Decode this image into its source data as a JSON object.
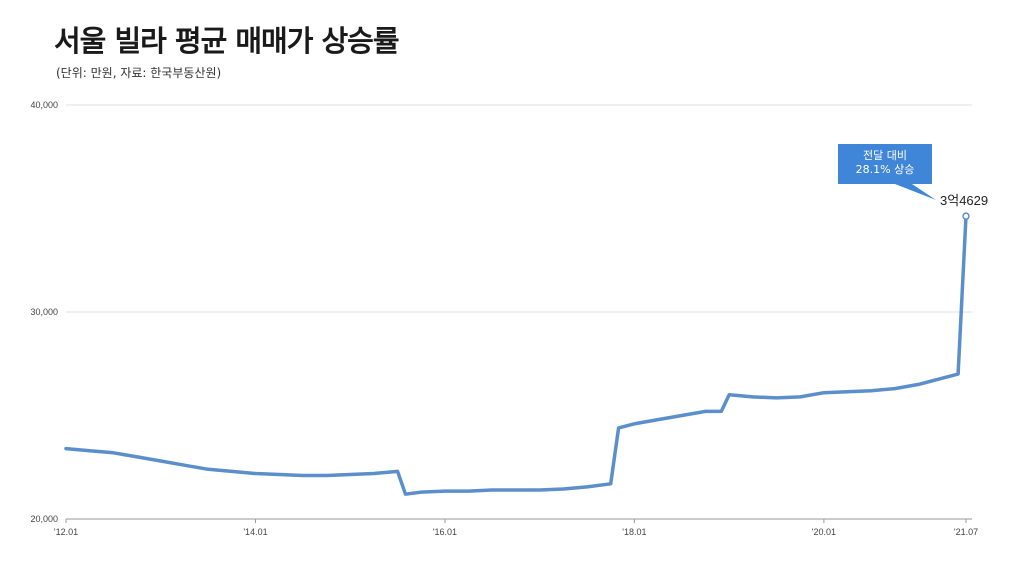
{
  "chart_data": {
    "type": "line",
    "title": "서울 빌라 평균 매매가 상승률",
    "subtitle": "(단위: 만원, 자료: 한국부동산원)",
    "ylim": [
      20000,
      40000
    ],
    "y_ticks": [
      20000,
      30000,
      40000
    ],
    "y_tick_labels": [
      "20,000",
      "30,000",
      "40,000"
    ],
    "x_ticks": [
      "2012-01",
      "2014-01",
      "2016-01",
      "2018-01",
      "2020-01",
      "2021-07"
    ],
    "x_tick_labels": [
      "'12.01",
      "'14.01",
      "'16.01",
      "'18.01",
      "'20.01",
      "'21.07"
    ],
    "grid": "horizontal",
    "color": "#5b8fcc",
    "series": [
      {
        "x": [
          "2012-01",
          "2012-04",
          "2012-07",
          "2012-10",
          "2013-01",
          "2013-04",
          "2013-07",
          "2013-10",
          "2014-01",
          "2014-04",
          "2014-07",
          "2014-10",
          "2015-01",
          "2015-04",
          "2015-07",
          "2015-08",
          "2015-10",
          "2016-01",
          "2016-04",
          "2016-07",
          "2016-10",
          "2017-01",
          "2017-04",
          "2017-07",
          "2017-10",
          "2017-11",
          "2018-01",
          "2018-04",
          "2018-07",
          "2018-10",
          "2018-12",
          "2019-01",
          "2019-04",
          "2019-07",
          "2019-10",
          "2020-01",
          "2020-04",
          "2020-07",
          "2020-10",
          "2021-01",
          "2021-04",
          "2021-06",
          "2021-07"
        ],
        "values": [
          23400,
          23300,
          23200,
          23000,
          22800,
          22600,
          22400,
          22300,
          22200,
          22150,
          22100,
          22100,
          22150,
          22200,
          22300,
          21200,
          21300,
          21350,
          21350,
          21400,
          21400,
          21400,
          21450,
          21550,
          21700,
          24400,
          24600,
          24800,
          25000,
          25200,
          25200,
          26000,
          25900,
          25850,
          25900,
          26100,
          26150,
          26200,
          26300,
          26500,
          26800,
          27000,
          34629
        ]
      }
    ],
    "annotation_value": "3억4629",
    "callout": [
      "전달 대비",
      "28.1% 상승"
    ]
  }
}
